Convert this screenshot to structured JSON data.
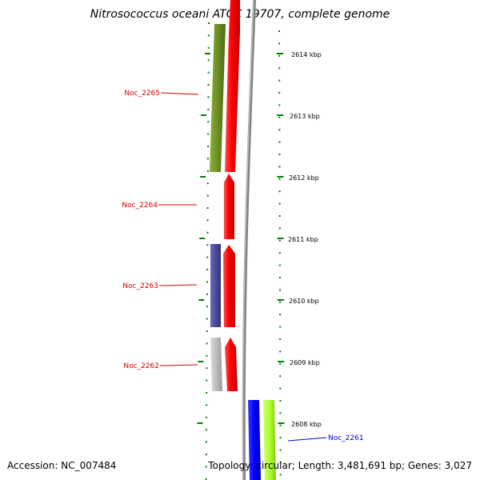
{
  "title": "Nitrosococcus oceani ATCC 19707, complete genome",
  "footer": {
    "accession": "Accession: NC_007484",
    "topology": "Topology: circular; Length: 3,481,691 bp; Genes: 3,027"
  },
  "scale_labels": [
    "2614 kbp",
    "2613 kbp",
    "2612 kbp",
    "2611 kbp",
    "2610 kbp",
    "2609 kbp",
    "2608 kbp"
  ],
  "gene_labels": [
    {
      "text": "Noc_2265",
      "color": "#cc0000"
    },
    {
      "text": "Noc_2264",
      "color": "#cc0000"
    },
    {
      "text": "Noc_2263",
      "color": "#cc0000"
    },
    {
      "text": "Noc_2262",
      "color": "#cc0000"
    },
    {
      "text": "Noc_2261",
      "color": "#0000cc"
    }
  ],
  "colors": {
    "selected_gene": "#ff0000",
    "olive_feature": "#6b8e23",
    "purple_feature": "#4b4b9a",
    "gray_feature": "#b8b8b8",
    "blue_gene": "#0000ff",
    "lime_feature": "#adff2f",
    "tick": "#008000",
    "backbone": "#808080"
  }
}
